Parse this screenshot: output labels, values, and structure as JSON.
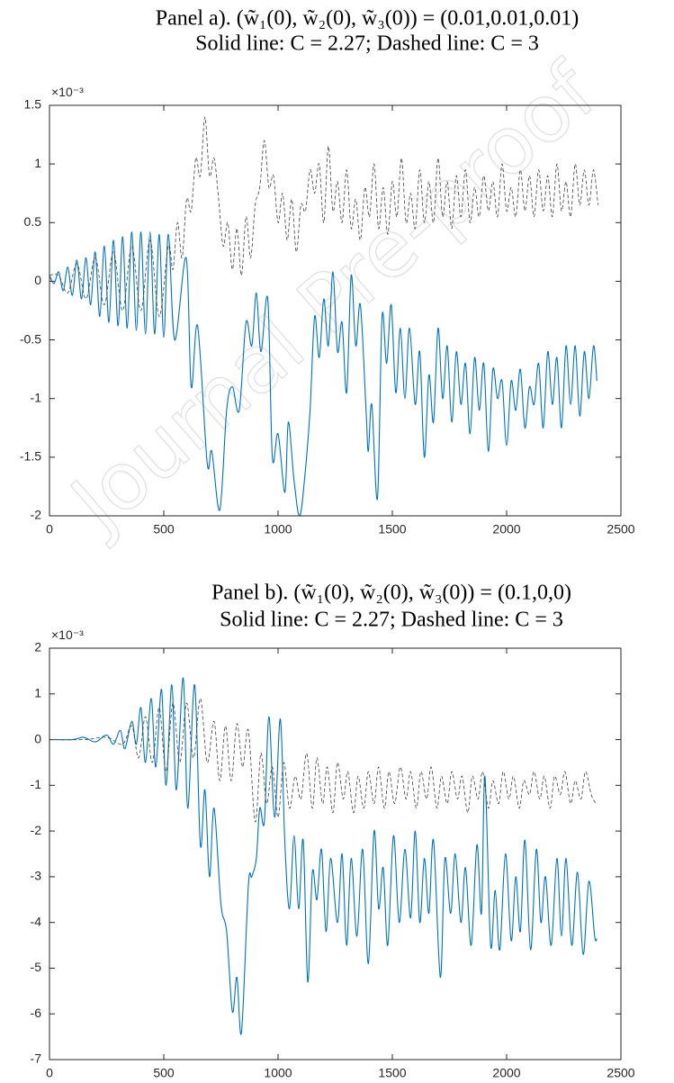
{
  "watermark": "Journal Pre-proof",
  "chart_data": [
    {
      "type": "line",
      "title": "Panel a). (w̃₁(0), w̃₂(0), w̃₃(0)) = (0.01,0.01,0.01)",
      "subtitle": "Solid line: C = 2.27; Dashed line: C = 3",
      "exponent_label": "×10⁻³",
      "xlim": [
        0,
        2500
      ],
      "xticks": [
        0,
        500,
        1000,
        1500,
        2000,
        2500
      ],
      "ylim": [
        -2,
        1.5
      ],
      "yticks": [
        -2,
        -1.5,
        -1,
        -0.5,
        0,
        0.5,
        1,
        1.5
      ],
      "grid": false,
      "series": [
        {
          "color": "#0072bd",
          "style": "solid",
          "x": [
            0,
            20,
            40,
            60,
            80,
            100,
            120,
            140,
            160,
            180,
            200,
            220,
            240,
            260,
            280,
            300,
            320,
            340,
            360,
            380,
            400,
            420,
            440,
            460,
            480,
            500,
            520,
            548,
            598,
            620,
            648,
            690,
            710,
            745,
            775,
            800,
            830,
            860,
            885,
            905,
            925,
            955,
            975,
            1000,
            1030,
            1045,
            1070,
            1095,
            1120,
            1140,
            1160,
            1180,
            1200,
            1220,
            1240,
            1260,
            1280,
            1300,
            1320,
            1340,
            1360,
            1385,
            1395,
            1410,
            1435,
            1455,
            1475,
            1495,
            1515,
            1535,
            1555,
            1575,
            1600,
            1620,
            1640,
            1660,
            1680,
            1700,
            1720,
            1740,
            1760,
            1780,
            1800,
            1820,
            1840,
            1860,
            1880,
            1900,
            1920,
            1940,
            1960,
            1980,
            2000,
            2020,
            2040,
            2060,
            2080,
            2100,
            2120,
            2140,
            2160,
            2180,
            2200,
            2220,
            2240,
            2260,
            2280,
            2300,
            2320,
            2340,
            2360,
            2380,
            2395
          ],
          "values": [
            0.05,
            -0.02,
            0.08,
            -0.08,
            0.12,
            -0.12,
            0.18,
            -0.15,
            0.2,
            -0.2,
            0.25,
            -0.3,
            0.3,
            -0.35,
            0.35,
            -0.38,
            0.38,
            -0.4,
            0.42,
            -0.42,
            0.42,
            -0.45,
            0.42,
            -0.45,
            0.4,
            -0.48,
            0.4,
            -0.5,
            0.2,
            -0.9,
            -0.38,
            -1.55,
            -1.45,
            -1.95,
            -1.1,
            -0.9,
            -1.1,
            -0.35,
            -0.55,
            -0.1,
            -0.6,
            -0.15,
            -1.5,
            -1.3,
            -1.8,
            -1.2,
            -1.7,
            -2.0,
            -1.6,
            -1.1,
            -0.3,
            -0.65,
            -0.15,
            -0.55,
            0.08,
            -0.6,
            -0.35,
            -0.95,
            0.05,
            -0.55,
            -0.2,
            -1.1,
            -1.45,
            -1.05,
            -1.85,
            -0.3,
            -0.7,
            -0.2,
            -0.95,
            -0.4,
            -1.0,
            -0.4,
            -1.05,
            -0.6,
            -1.5,
            -0.8,
            -1.2,
            -0.4,
            -1.0,
            -0.55,
            -1.2,
            -0.6,
            -1.05,
            -0.7,
            -1.3,
            -0.65,
            -1.1,
            -0.7,
            -1.45,
            -0.75,
            -1.0,
            -0.85,
            -1.4,
            -0.85,
            -1.1,
            -0.75,
            -1.25,
            -0.9,
            -1.05,
            -0.7,
            -1.25,
            -0.6,
            -1.05,
            -0.65,
            -1.25,
            -0.55,
            -1.05,
            -0.55,
            -1.15,
            -0.6,
            -1.0,
            -0.55,
            -0.85
          ]
        },
        {
          "color": "#404040",
          "style": "dashed",
          "x": [
            0,
            40,
            80,
            120,
            160,
            200,
            240,
            280,
            320,
            360,
            400,
            440,
            480,
            520,
            540,
            560,
            580,
            600,
            620,
            640,
            660,
            680,
            700,
            720,
            740,
            760,
            780,
            800,
            820,
            840,
            860,
            880,
            900,
            920,
            940,
            960,
            980,
            1000,
            1020,
            1040,
            1060,
            1080,
            1100,
            1120,
            1140,
            1160,
            1180,
            1200,
            1220,
            1240,
            1260,
            1280,
            1300,
            1320,
            1340,
            1360,
            1380,
            1400,
            1420,
            1440,
            1460,
            1480,
            1500,
            1520,
            1540,
            1560,
            1580,
            1600,
            1620,
            1640,
            1660,
            1680,
            1700,
            1720,
            1740,
            1760,
            1780,
            1800,
            1820,
            1840,
            1860,
            1880,
            1900,
            1920,
            1940,
            1960,
            1980,
            2000,
            2020,
            2040,
            2060,
            2080,
            2100,
            2120,
            2140,
            2160,
            2180,
            2200,
            2220,
            2240,
            2260,
            2280,
            2300,
            2320,
            2340,
            2360,
            2380,
            2400
          ],
          "values": [
            0.05,
            0.05,
            -0.1,
            0.15,
            -0.15,
            0.2,
            -0.2,
            0.25,
            -0.25,
            0.3,
            -0.25,
            0.35,
            -0.3,
            0.3,
            0.1,
            0.5,
            0.2,
            0.7,
            0.6,
            1.05,
            0.9,
            1.4,
            0.9,
            1.05,
            0.7,
            0.3,
            0.5,
            0.1,
            0.45,
            0.05,
            0.55,
            0.2,
            0.65,
            0.8,
            1.2,
            0.8,
            0.9,
            0.5,
            0.75,
            0.35,
            0.7,
            0.25,
            0.65,
            0.6,
            0.95,
            0.75,
            1.0,
            0.5,
            1.15,
            0.6,
            0.85,
            0.5,
            0.95,
            0.45,
            0.7,
            0.35,
            0.8,
            0.55,
            1.0,
            0.45,
            0.8,
            0.4,
            0.85,
            0.55,
            1.05,
            0.5,
            0.75,
            0.45,
            0.95,
            0.5,
            0.85,
            0.5,
            1.05,
            0.55,
            0.85,
            0.45,
            0.9,
            0.55,
            0.95,
            0.5,
            0.8,
            0.55,
            0.9,
            0.6,
            0.85,
            0.55,
            1.0,
            0.6,
            0.8,
            0.55,
            0.95,
            0.6,
            0.9,
            0.55,
            0.95,
            0.6,
            0.9,
            0.55,
            1.0,
            0.6,
            0.85,
            0.55,
            1.0,
            0.65,
            0.95,
            0.65,
            0.95,
            0.65
          ]
        }
      ]
    },
    {
      "type": "line",
      "title": "Panel b). (w̃₁(0), w̃₂(0), w̃₃(0)) = (0.1,0,0)",
      "subtitle": "Solid line: C = 2.27; Dashed line: C = 3",
      "exponent_label": "×10⁻³",
      "xlim": [
        0,
        2500
      ],
      "xticks": [
        0,
        500,
        1000,
        1500,
        2000,
        2500
      ],
      "ylim": [
        -7,
        2
      ],
      "yticks": [
        -7,
        -6,
        -5,
        -4,
        -3,
        -2,
        -1,
        0,
        1,
        2
      ],
      "grid": false,
      "series": [
        {
          "color": "#0072bd",
          "style": "solid",
          "x": [
            0,
            100,
            150,
            200,
            250,
            280,
            310,
            330,
            360,
            380,
            400,
            420,
            445,
            465,
            490,
            510,
            535,
            555,
            585,
            605,
            635,
            660,
            680,
            700,
            720,
            750,
            775,
            800,
            820,
            840,
            870,
            885,
            905,
            920,
            940,
            960,
            985,
            1010,
            1030,
            1050,
            1070,
            1090,
            1110,
            1130,
            1150,
            1170,
            1190,
            1210,
            1230,
            1260,
            1280,
            1300,
            1320,
            1345,
            1370,
            1395,
            1420,
            1440,
            1460,
            1480,
            1505,
            1530,
            1555,
            1580,
            1600,
            1620,
            1640,
            1660,
            1680,
            1710,
            1730,
            1755,
            1775,
            1800,
            1820,
            1845,
            1870,
            1890,
            1905,
            1930,
            1950,
            1970,
            1995,
            2020,
            2040,
            2060,
            2080,
            2105,
            2130,
            2150,
            2170,
            2195,
            2220,
            2240,
            2260,
            2285,
            2310,
            2335,
            2360,
            2385,
            2395
          ],
          "values": [
            0,
            0,
            0.05,
            -0.05,
            0.1,
            -0.1,
            0.2,
            -0.2,
            0.4,
            -0.1,
            0.7,
            -0.5,
            0.9,
            -0.6,
            1.1,
            -1.0,
            1.2,
            -1.1,
            1.35,
            -1.5,
            1.2,
            -2.3,
            -1.1,
            -3.0,
            -1.5,
            -3.6,
            -4.2,
            -5.95,
            -5.2,
            -6.4,
            -3.2,
            -3.0,
            -2.6,
            -1.5,
            -1.8,
            0.5,
            -1.7,
            0.45,
            -2.3,
            -3.7,
            -2.1,
            -3.7,
            -2.2,
            -5.3,
            -2.9,
            -3.5,
            -2.4,
            -4.2,
            -2.6,
            -4.0,
            -2.5,
            -4.5,
            -2.6,
            -4.3,
            -2.4,
            -4.9,
            -2.0,
            -3.7,
            -2.8,
            -4.5,
            -2.1,
            -4.0,
            -2.4,
            -3.9,
            -2.0,
            -4.0,
            -2.6,
            -3.8,
            -2.2,
            -5.2,
            -2.6,
            -3.8,
            -2.5,
            -4.0,
            -2.8,
            -4.5,
            -2.3,
            -3.8,
            -0.8,
            -4.5,
            -3.3,
            -4.6,
            -2.5,
            -4.4,
            -3.0,
            -4.2,
            -2.2,
            -4.6,
            -2.4,
            -4.0,
            -3.0,
            -4.5,
            -2.6,
            -4.3,
            -2.6,
            -4.5,
            -2.9,
            -4.7,
            -3.1,
            -4.3,
            -4.35
          ]
        },
        {
          "color": "#404040",
          "style": "dashed",
          "x": [
            0,
            150,
            250,
            320,
            360,
            390,
            420,
            450,
            480,
            510,
            540,
            570,
            600,
            630,
            660,
            690,
            720,
            745,
            770,
            795,
            820,
            845,
            870,
            900,
            925,
            950,
            975,
            1000,
            1025,
            1050,
            1075,
            1100,
            1125,
            1150,
            1170,
            1195,
            1215,
            1240,
            1260,
            1285,
            1305,
            1330,
            1350,
            1375,
            1395,
            1420,
            1440,
            1465,
            1485,
            1510,
            1535,
            1560,
            1580,
            1605,
            1625,
            1650,
            1670,
            1695,
            1715,
            1740,
            1760,
            1785,
            1805,
            1830,
            1850,
            1875,
            1895,
            1920,
            1940,
            1965,
            1985,
            2010,
            2030,
            2055,
            2075,
            2100,
            2120,
            2145,
            2165,
            2190,
            2210,
            2235,
            2255,
            2280,
            2300,
            2325,
            2345,
            2370,
            2390
          ],
          "values": [
            0,
            0,
            0.05,
            -0.1,
            0.3,
            -0.4,
            0.5,
            -0.5,
            0.7,
            -0.7,
            0.8,
            -0.5,
            0.8,
            -0.4,
            0.9,
            -0.5,
            0.4,
            -0.9,
            0.3,
            -0.9,
            0.35,
            -0.6,
            0.2,
            -1.8,
            -0.3,
            -1.4,
            -0.6,
            -1.7,
            -0.5,
            -1.5,
            -0.8,
            -1.3,
            -0.3,
            -1.5,
            -0.4,
            -1.4,
            -0.6,
            -1.6,
            -0.5,
            -1.3,
            -0.7,
            -1.6,
            -0.8,
            -1.5,
            -0.7,
            -1.4,
            -0.6,
            -1.5,
            -0.7,
            -1.4,
            -0.6,
            -1.3,
            -0.7,
            -1.5,
            -0.7,
            -1.3,
            -0.6,
            -1.5,
            -0.8,
            -1.4,
            -0.7,
            -1.3,
            -0.8,
            -1.6,
            -0.8,
            -1.3,
            -0.7,
            -1.5,
            -0.9,
            -1.4,
            -0.7,
            -1.3,
            -0.8,
            -1.5,
            -0.9,
            -1.2,
            -0.7,
            -1.3,
            -0.8,
            -1.5,
            -0.8,
            -1.2,
            -0.7,
            -1.4,
            -0.9,
            -1.3,
            -0.7,
            -1.2,
            -1.4
          ]
        }
      ]
    }
  ]
}
